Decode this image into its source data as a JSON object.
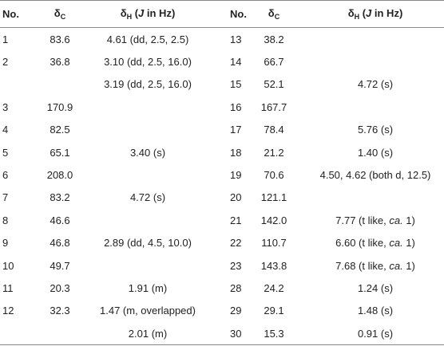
{
  "table": {
    "header": [
      [
        "No."
      ],
      [
        "δ",
        "C"
      ],
      [
        "δ",
        "H",
        " (",
        "J",
        " in Hz)"
      ],
      [
        "No."
      ],
      [
        "δ",
        "C"
      ],
      [
        "δ",
        "H",
        " (",
        "J",
        " in Hz)"
      ]
    ],
    "rows": [
      [
        "1",
        "83.6",
        "4.61 (dd, 2.5, 2.5)",
        "13",
        "38.2",
        null
      ],
      [
        "2",
        "36.8",
        "3.10 (dd, 2.5, 16.0)",
        "14",
        "66.7",
        null
      ],
      [
        null,
        null,
        "3.19 (dd, 2.5, 16.0)",
        "15",
        "52.1",
        "4.72 (s)"
      ],
      [
        "3",
        "170.9",
        null,
        "16",
        "167.7",
        null
      ],
      [
        "4",
        "82.5",
        null,
        "17",
        "78.4",
        "5.76 (s)"
      ],
      [
        "5",
        "65.1",
        "3.40 (s)",
        "18",
        "21.2",
        "1.40 (s)"
      ],
      [
        "6",
        "208.0",
        null,
        "19",
        "70.6",
        "4.50, 4.62 (both d, 12.5)"
      ],
      [
        "7",
        "83.2",
        "4.72 (s)",
        "20",
        "121.1",
        null
      ],
      [
        "8",
        "46.6",
        null,
        "21",
        "142.0",
        [
          "7.77 (t like, ",
          "ca.",
          " 1)"
        ]
      ],
      [
        "9",
        "46.8",
        "2.89 (dd, 4.5, 10.0)",
        "22",
        "110.7",
        [
          "6.60 (t like, ",
          "ca.",
          " 1)"
        ]
      ],
      [
        "10",
        "49.7",
        null,
        "23",
        "143.8",
        [
          "7.68 (t like, ",
          "ca.",
          " 1)"
        ]
      ],
      [
        "11",
        "20.3",
        "1.91 (m)",
        "28",
        "24.2",
        "1.24 (s)"
      ],
      [
        "12",
        "32.3",
        "1.47 (m, overlapped)",
        "29",
        "29.1",
        "1.48 (s)"
      ],
      [
        null,
        null,
        "2.01 (m)",
        "30",
        "15.3",
        "0.91 (s)"
      ]
    ]
  }
}
